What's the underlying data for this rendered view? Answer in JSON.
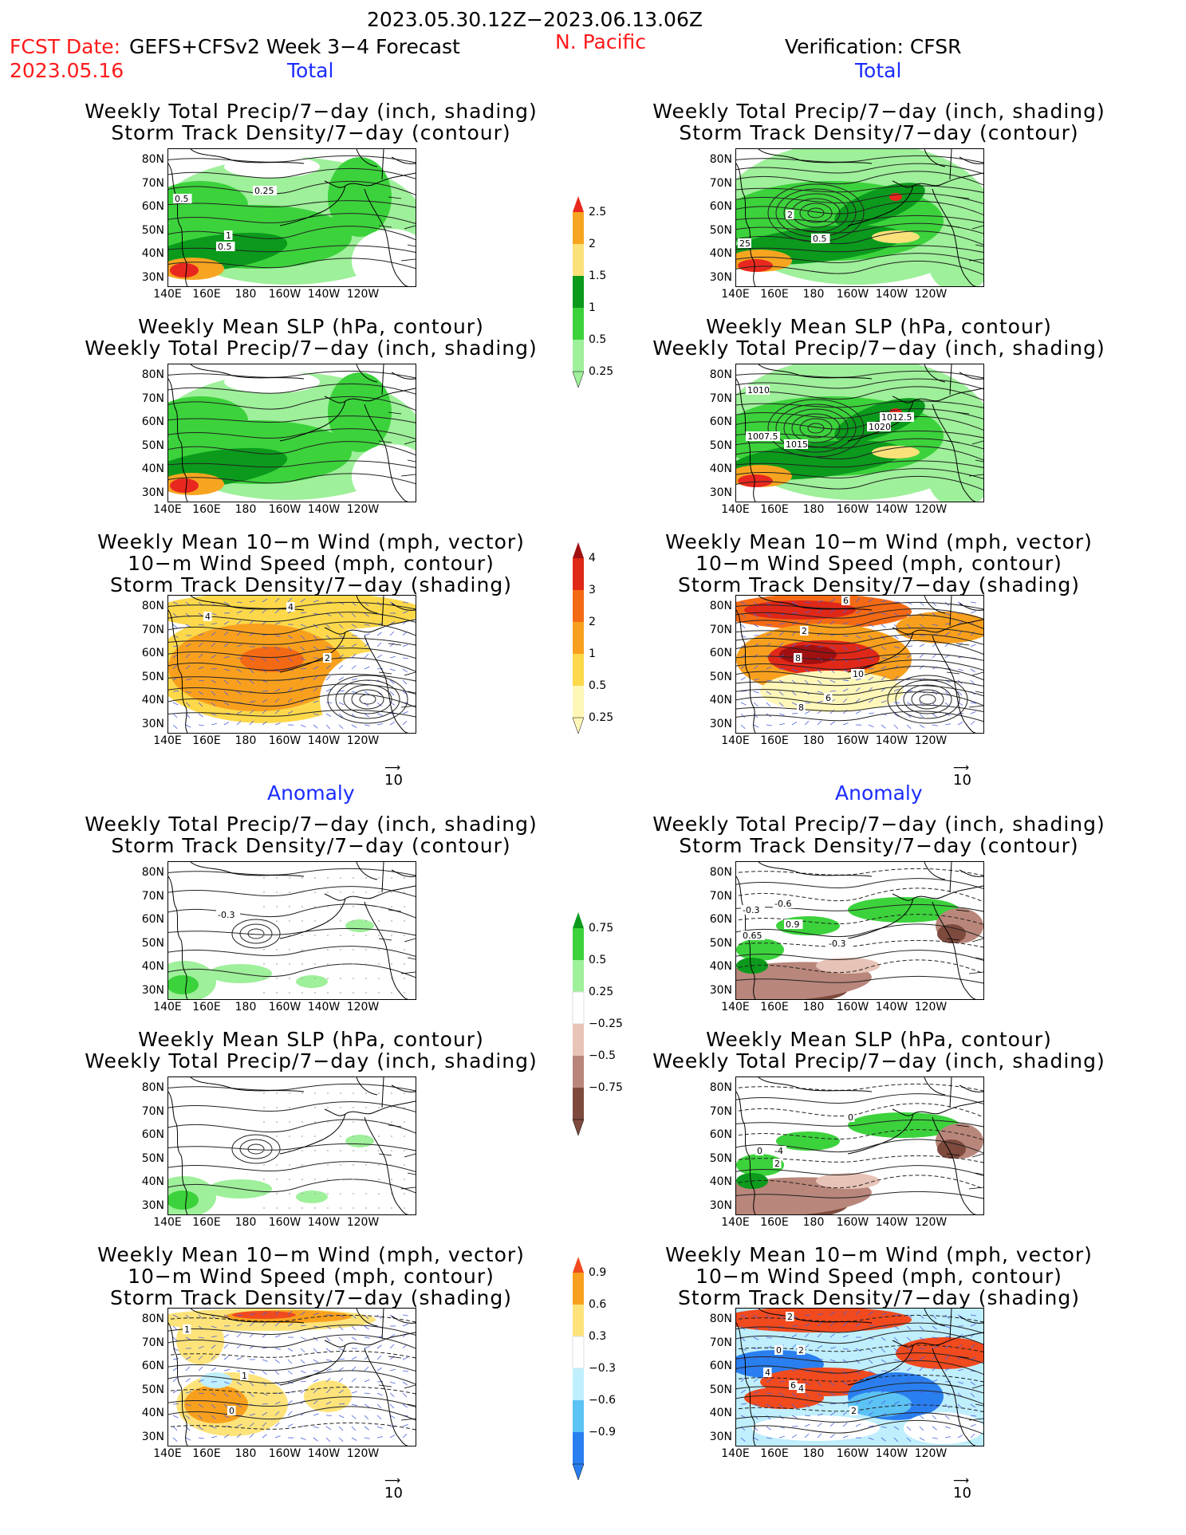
{
  "header": {
    "period": "2023.05.30.12Z−2023.06.13.06Z",
    "fcst_label": "FCST Date:",
    "model": "GEFS+CFSv2 Week 3−4 Forecast",
    "fcst_date": "2023.05.16",
    "region": "N. Pacific",
    "verification": "Verification: CFSR",
    "total_left": "Total",
    "total_right": "Total",
    "anomaly_left": "Anomaly",
    "anomaly_right": "Anomaly"
  },
  "titles": {
    "precip_storm": [
      "Weekly Total Precip/7−day (inch, shading)",
      "Storm Track Density/7−day (contour)"
    ],
    "slp_precip": [
      "Weekly Mean SLP (hPa, contour)",
      "Weekly Total Precip/7−day (inch, shading)"
    ],
    "wind": [
      "Weekly Mean 10−m Wind (mph, vector)",
      "10−m Wind Speed (mph, contour)",
      "Storm Track Density/7−day (shading)"
    ]
  },
  "axes": {
    "lat": [
      "80N",
      "70N",
      "60N",
      "50N",
      "40N",
      "30N"
    ],
    "lon": [
      "140E",
      "160E",
      "180",
      "160W",
      "140W",
      "120W"
    ]
  },
  "vector_ref": "10",
  "colorbars": {
    "precip_total": {
      "labels": [
        "2.5",
        "2",
        "1.5",
        "1",
        "0.5",
        "0.25"
      ],
      "colors": [
        "#e8281e",
        "#f7a520",
        "#fbe17a",
        "#0b9a1c",
        "#3cd23c",
        "#9ef09a"
      ]
    },
    "storm_total": {
      "labels": [
        "4",
        "3",
        "2",
        "1",
        "0.5",
        "0.25"
      ],
      "colors": [
        "#a01010",
        "#e02818",
        "#f46a14",
        "#f8a01e",
        "#fdd84a",
        "#fff7b8"
      ]
    },
    "precip_anom": {
      "labels": [
        "0.75",
        "0.5",
        "0.25",
        "−0.25",
        "−0.5",
        "−0.75"
      ],
      "colors": [
        "#0b9a1c",
        "#3cd23c",
        "#9ef09a",
        "#ffffff",
        "#e7c3b7",
        "#b8867a",
        "#7e4a3e"
      ]
    },
    "storm_anom": {
      "labels": [
        "0.9",
        "0.6",
        "0.3",
        "−0.3",
        "−0.6",
        "−0.9"
      ],
      "colors": [
        "#f04a1e",
        "#f8a01e",
        "#fde37a",
        "#ffffff",
        "#bfeefd",
        "#5cc3f5",
        "#2a7ff0"
      ]
    }
  },
  "contour_labels": {
    "p1L": [
      "0.5",
      "0.25",
      "1",
      "0.5"
    ],
    "p1R": [
      "2",
      "0.5",
      "25"
    ],
    "p2R": [
      "1010",
      "1007.5",
      "1015",
      "1012.5",
      "1020"
    ],
    "p3L": [
      "4",
      "4",
      "2"
    ],
    "p3R": [
      "6",
      "2",
      "8",
      "10",
      "6",
      "8"
    ],
    "p4L": [
      "-0.3"
    ],
    "p4R": [
      "-0.3",
      "-0.6",
      "0.9",
      "0.65",
      "-0.3"
    ],
    "p5R": [
      "0",
      "-4",
      "0",
      "2"
    ],
    "p6L": [
      "1",
      "1",
      "0"
    ],
    "p6R": [
      "2",
      "0",
      "2",
      "4",
      "6",
      "4",
      "2"
    ]
  }
}
